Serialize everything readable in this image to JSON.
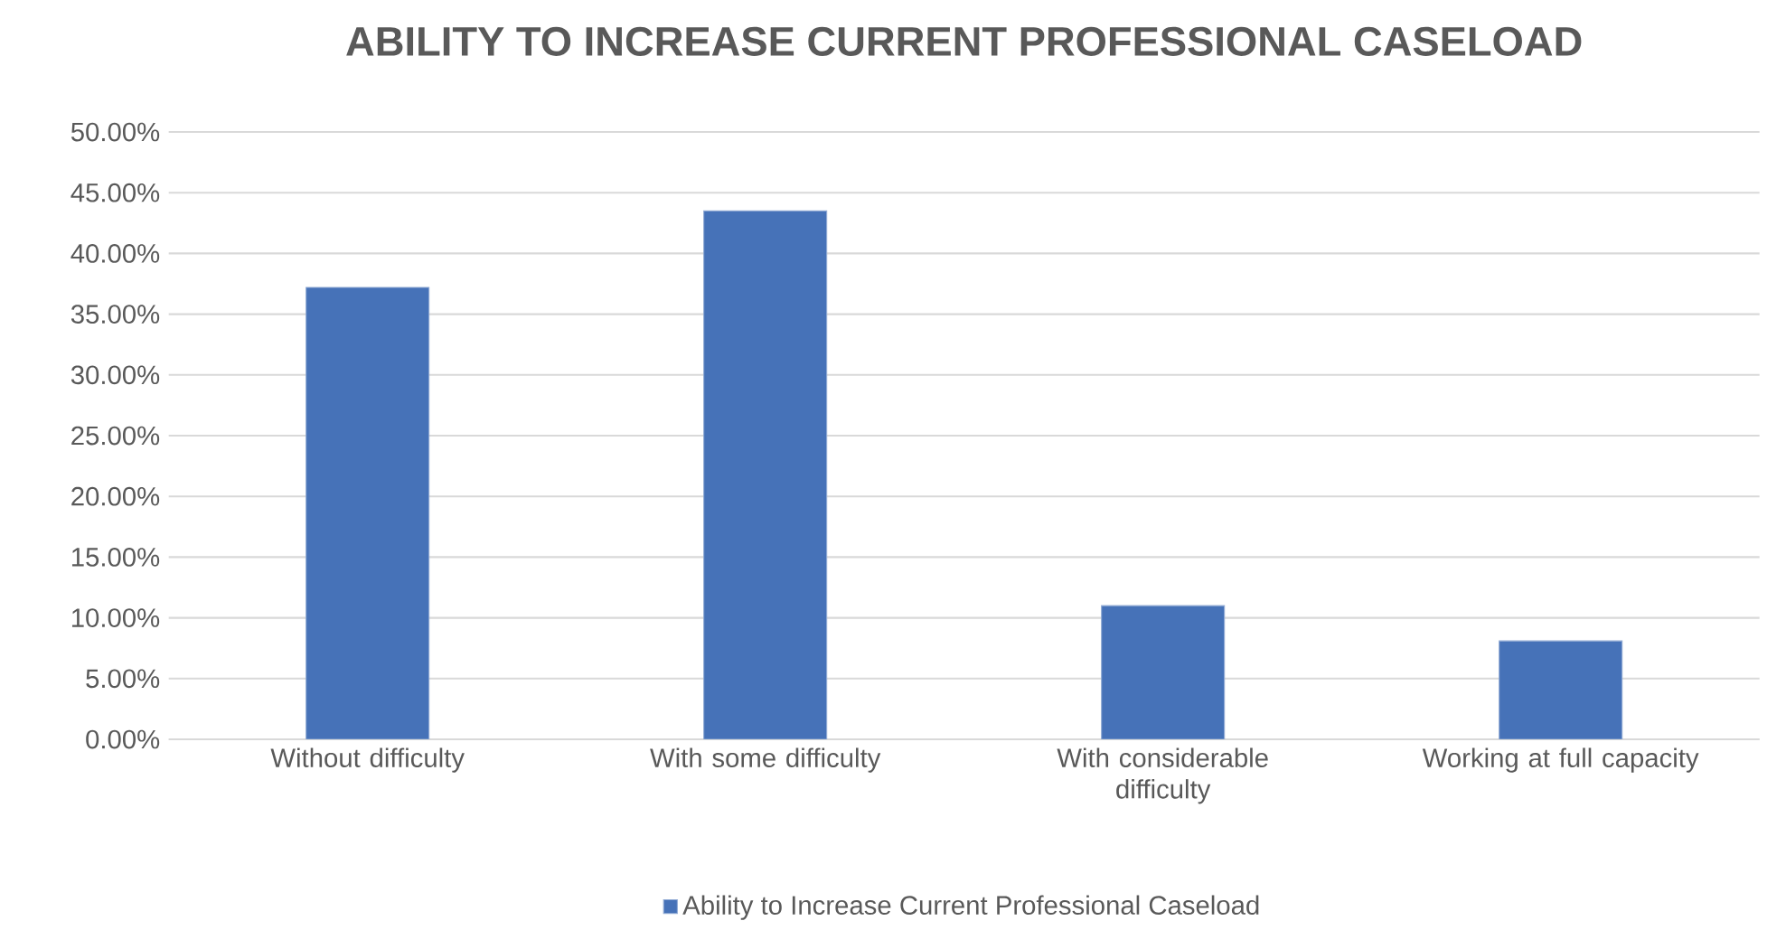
{
  "chart_data": {
    "type": "bar",
    "title": "ABILITY TO INCREASE CURRENT PROFESSIONAL CASELOAD",
    "categories": [
      "Without difficulty",
      "With some difficulty",
      "With considerable difficulty",
      "Working at full capacity"
    ],
    "series": [
      {
        "name": "Ability to Increase Current Professional Caseload",
        "color": "#4672b8",
        "values": [
          37.2,
          43.5,
          11.0,
          8.1
        ]
      }
    ],
    "ylim": [
      0,
      50
    ],
    "yticks": [
      {
        "value": 0,
        "label": "0.00%"
      },
      {
        "value": 5,
        "label": "5.00%"
      },
      {
        "value": 10,
        "label": "10.00%"
      },
      {
        "value": 15,
        "label": "15.00%"
      },
      {
        "value": 20,
        "label": "20.00%"
      },
      {
        "value": 25,
        "label": "25.00%"
      },
      {
        "value": 30,
        "label": "30.00%"
      },
      {
        "value": 35,
        "label": "35.00%"
      },
      {
        "value": 40,
        "label": "40.00%"
      },
      {
        "value": 45,
        "label": "45.00%"
      },
      {
        "value": 50,
        "label": "50.00%"
      }
    ],
    "grid": "y",
    "legend": "bottom"
  }
}
